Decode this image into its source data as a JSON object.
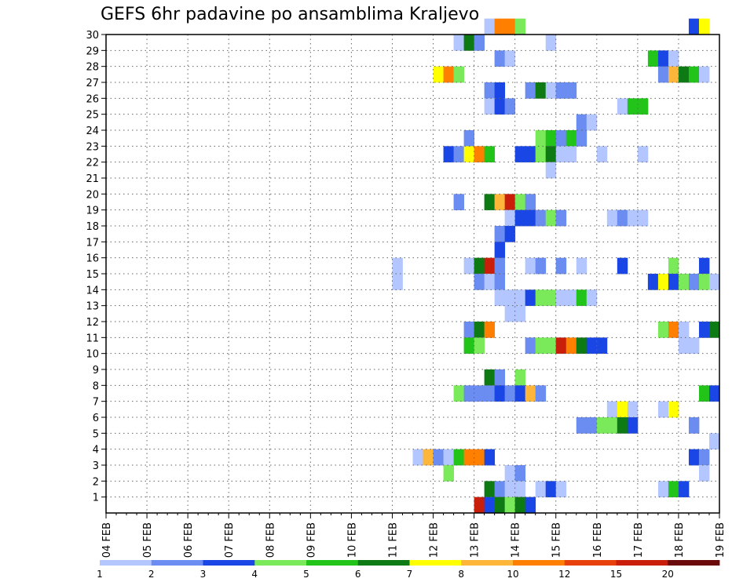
{
  "title": "GEFS 6hr padavine po ansamblima Kraljevo",
  "chart_data": {
    "type": "heatmap",
    "title": "GEFS 6hr padavine po ansamblima Kraljevo",
    "x_tick_labels": [
      "04 FEB",
      "05 FEB",
      "06 FEB",
      "07 FEB",
      "08 FEB",
      "09 FEB",
      "10 FEB",
      "11 FEB",
      "12 FEB",
      "13 FEB",
      "14 FEB",
      "15 FEB",
      "16 FEB",
      "17 FEB",
      "18 FEB",
      "19 FEB"
    ],
    "y_tick_labels": [
      "1",
      "2",
      "3",
      "4",
      "5",
      "6",
      "7",
      "8",
      "9",
      "10",
      "11",
      "12",
      "13",
      "14",
      "15",
      "16",
      "17",
      "18",
      "19",
      "20",
      "21",
      "22",
      "23",
      "24",
      "25",
      "26",
      "27",
      "28",
      "29",
      "30"
    ],
    "x_range": [
      "04 FEB 00Z",
      "19 FEB 00Z"
    ],
    "time_step_hours": 6,
    "y_range": [
      0,
      30
    ],
    "grid": true,
    "legend": {
      "placement": "bottom",
      "labels": [
        "1",
        "2",
        "3",
        "4",
        "5",
        "6",
        "7",
        "8",
        "10",
        "12",
        "15",
        "20"
      ],
      "colors": [
        "#b3c6ff",
        "#6b8cf0",
        "#1a46e6",
        "#7aea5a",
        "#22c41a",
        "#0e7a14",
        "#ffff00",
        "#fdb53a",
        "#ff7f00",
        "#e8400a",
        "#c81e0a",
        "#6b0a0a"
      ]
    },
    "cells": [
      {
        "member": 30,
        "time": "13 FEB 12Z",
        "level": 1
      },
      {
        "member": 30,
        "time": "13 FEB 18Z",
        "level": 10
      },
      {
        "member": 30,
        "time": "14 FEB 00Z",
        "level": 10
      },
      {
        "member": 30,
        "time": "14 FEB 06Z",
        "level": 4
      },
      {
        "member": 30,
        "time": "18 FEB 12Z",
        "level": 3
      },
      {
        "member": 30,
        "time": "18 FEB 18Z",
        "level": 7
      },
      {
        "member": 29,
        "time": "12 FEB 18Z",
        "level": 1
      },
      {
        "member": 29,
        "time": "13 FEB 00Z",
        "level": 6
      },
      {
        "member": 29,
        "time": "13 FEB 06Z",
        "level": 2
      },
      {
        "member": 29,
        "time": "15 FEB 00Z",
        "level": 1
      },
      {
        "member": 28,
        "time": "13 FEB 18Z",
        "level": 2
      },
      {
        "member": 28,
        "time": "14 FEB 00Z",
        "level": 1
      },
      {
        "member": 28,
        "time": "17 FEB 12Z",
        "level": 5
      },
      {
        "member": 28,
        "time": "17 FEB 18Z",
        "level": 3
      },
      {
        "member": 28,
        "time": "18 FEB 00Z",
        "level": 1
      },
      {
        "member": 27,
        "time": "12 FEB 06Z",
        "level": 7
      },
      {
        "member": 27,
        "time": "12 FEB 12Z",
        "level": 10
      },
      {
        "member": 27,
        "time": "12 FEB 18Z",
        "level": 4
      },
      {
        "member": 27,
        "time": "17 FEB 18Z",
        "level": 2
      },
      {
        "member": 27,
        "time": "18 FEB 00Z",
        "level": 8
      },
      {
        "member": 27,
        "time": "18 FEB 06Z",
        "level": 6
      },
      {
        "member": 27,
        "time": "18 FEB 12Z",
        "level": 5
      },
      {
        "member": 27,
        "time": "18 FEB 18Z",
        "level": 1
      },
      {
        "member": 26,
        "time": "13 FEB 12Z",
        "level": 2
      },
      {
        "member": 26,
        "time": "13 FEB 18Z",
        "level": 3
      },
      {
        "member": 26,
        "time": "14 FEB 12Z",
        "level": 2
      },
      {
        "member": 26,
        "time": "14 FEB 18Z",
        "level": 6
      },
      {
        "member": 26,
        "time": "15 FEB 00Z",
        "level": 1
      },
      {
        "member": 26,
        "time": "15 FEB 06Z",
        "level": 2
      },
      {
        "member": 26,
        "time": "15 FEB 12Z",
        "level": 2
      },
      {
        "member": 25,
        "time": "13 FEB 12Z",
        "level": 1
      },
      {
        "member": 25,
        "time": "13 FEB 18Z",
        "level": 3
      },
      {
        "member": 25,
        "time": "14 FEB 00Z",
        "level": 2
      },
      {
        "member": 25,
        "time": "16 FEB 18Z",
        "level": 1
      },
      {
        "member": 25,
        "time": "17 FEB 00Z",
        "level": 5
      },
      {
        "member": 25,
        "time": "17 FEB 06Z",
        "level": 5
      },
      {
        "member": 24,
        "time": "15 FEB 18Z",
        "level": 2
      },
      {
        "member": 24,
        "time": "16 FEB 00Z",
        "level": 1
      },
      {
        "member": 23,
        "time": "13 FEB 00Z",
        "level": 2
      },
      {
        "member": 23,
        "time": "14 FEB 18Z",
        "level": 4
      },
      {
        "member": 23,
        "time": "15 FEB 00Z",
        "level": 5
      },
      {
        "member": 23,
        "time": "15 FEB 06Z",
        "level": 2
      },
      {
        "member": 23,
        "time": "15 FEB 12Z",
        "level": 5
      },
      {
        "member": 23,
        "time": "15 FEB 18Z",
        "level": 2
      },
      {
        "member": 22,
        "time": "12 FEB 12Z",
        "level": 3
      },
      {
        "member": 22,
        "time": "12 FEB 18Z",
        "level": 2
      },
      {
        "member": 22,
        "time": "13 FEB 00Z",
        "level": 7
      },
      {
        "member": 22,
        "time": "13 FEB 06Z",
        "level": 10
      },
      {
        "member": 22,
        "time": "13 FEB 12Z",
        "level": 5
      },
      {
        "member": 22,
        "time": "14 FEB 06Z",
        "level": 3
      },
      {
        "member": 22,
        "time": "14 FEB 12Z",
        "level": 3
      },
      {
        "member": 22,
        "time": "14 FEB 18Z",
        "level": 4
      },
      {
        "member": 22,
        "time": "15 FEB 00Z",
        "level": 6
      },
      {
        "member": 22,
        "time": "15 FEB 06Z",
        "level": 1
      },
      {
        "member": 22,
        "time": "15 FEB 12Z",
        "level": 1
      },
      {
        "member": 22,
        "time": "16 FEB 06Z",
        "level": 1
      },
      {
        "member": 22,
        "time": "17 FEB 06Z",
        "level": 1
      },
      {
        "member": 21,
        "time": "15 FEB 00Z",
        "level": 1
      },
      {
        "member": 19,
        "time": "12 FEB 18Z",
        "level": 2
      },
      {
        "member": 19,
        "time": "13 FEB 12Z",
        "level": 6
      },
      {
        "member": 19,
        "time": "13 FEB 18Z",
        "level": 8
      },
      {
        "member": 19,
        "time": "14 FEB 00Z",
        "level": 15
      },
      {
        "member": 19,
        "time": "14 FEB 06Z",
        "level": 4
      },
      {
        "member": 19,
        "time": "14 FEB 12Z",
        "level": 2
      },
      {
        "member": 18,
        "time": "14 FEB 00Z",
        "level": 1
      },
      {
        "member": 18,
        "time": "14 FEB 06Z",
        "level": 3
      },
      {
        "member": 18,
        "time": "14 FEB 12Z",
        "level": 3
      },
      {
        "member": 18,
        "time": "14 FEB 18Z",
        "level": 2
      },
      {
        "member": 18,
        "time": "15 FEB 00Z",
        "level": 4
      },
      {
        "member": 18,
        "time": "15 FEB 06Z",
        "level": 2
      },
      {
        "member": 18,
        "time": "16 FEB 12Z",
        "level": 1
      },
      {
        "member": 18,
        "time": "16 FEB 18Z",
        "level": 2
      },
      {
        "member": 18,
        "time": "17 FEB 00Z",
        "level": 1
      },
      {
        "member": 18,
        "time": "17 FEB 06Z",
        "level": 1
      },
      {
        "member": 17,
        "time": "13 FEB 18Z",
        "level": 2
      },
      {
        "member": 17,
        "time": "14 FEB 00Z",
        "level": 3
      },
      {
        "member": 16,
        "time": "13 FEB 18Z",
        "level": 3
      },
      {
        "member": 15,
        "time": "11 FEB 06Z",
        "level": 1
      },
      {
        "member": 15,
        "time": "13 FEB 00Z",
        "level": 1
      },
      {
        "member": 15,
        "time": "13 FEB 06Z",
        "level": 6
      },
      {
        "member": 15,
        "time": "13 FEB 12Z",
        "level": 15
      },
      {
        "member": 15,
        "time": "13 FEB 18Z",
        "level": 2
      },
      {
        "member": 15,
        "time": "14 FEB 12Z",
        "level": 1
      },
      {
        "member": 15,
        "time": "14 FEB 18Z",
        "level": 2
      },
      {
        "member": 15,
        "time": "15 FEB 06Z",
        "level": 2
      },
      {
        "member": 15,
        "time": "15 FEB 18Z",
        "level": 1
      },
      {
        "member": 15,
        "time": "16 FEB 18Z",
        "level": 3
      },
      {
        "member": 15,
        "time": "18 FEB 00Z",
        "level": 4
      },
      {
        "member": 15,
        "time": "18 FEB 18Z",
        "level": 3
      },
      {
        "member": 14,
        "time": "11 FEB 06Z",
        "level": 1
      },
      {
        "member": 14,
        "time": "13 FEB 06Z",
        "level": 2
      },
      {
        "member": 14,
        "time": "13 FEB 12Z",
        "level": 1
      },
      {
        "member": 14,
        "time": "13 FEB 18Z",
        "level": 2
      },
      {
        "member": 14,
        "time": "17 FEB 12Z",
        "level": 3
      },
      {
        "member": 14,
        "time": "17 FEB 18Z",
        "level": 7
      },
      {
        "member": 14,
        "time": "18 FEB 00Z",
        "level": 3
      },
      {
        "member": 14,
        "time": "18 FEB 06Z",
        "level": 4
      },
      {
        "member": 14,
        "time": "18 FEB 12Z",
        "level": 2
      },
      {
        "member": 14,
        "time": "18 FEB 18Z",
        "level": 4
      },
      {
        "member": 14,
        "time": "19 FEB 00Z",
        "level": 1
      },
      {
        "member": 13,
        "time": "13 FEB 18Z",
        "level": 1
      },
      {
        "member": 13,
        "time": "14 FEB 00Z",
        "level": 1
      },
      {
        "member": 13,
        "time": "14 FEB 06Z",
        "level": 1
      },
      {
        "member": 13,
        "time": "14 FEB 12Z",
        "level": 3
      },
      {
        "member": 13,
        "time": "14 FEB 18Z",
        "level": 4
      },
      {
        "member": 13,
        "time": "15 FEB 00Z",
        "level": 4
      },
      {
        "member": 13,
        "time": "15 FEB 06Z",
        "level": 1
      },
      {
        "member": 13,
        "time": "15 FEB 12Z",
        "level": 1
      },
      {
        "member": 13,
        "time": "15 FEB 18Z",
        "level": 5
      },
      {
        "member": 13,
        "time": "16 FEB 00Z",
        "level": 1
      },
      {
        "member": 12,
        "time": "14 FEB 00Z",
        "level": 1
      },
      {
        "member": 12,
        "time": "14 FEB 06Z",
        "level": 1
      },
      {
        "member": 11,
        "time": "13 FEB 00Z",
        "level": 2
      },
      {
        "member": 11,
        "time": "13 FEB 06Z",
        "level": 6
      },
      {
        "member": 11,
        "time": "13 FEB 12Z",
        "level": 10
      },
      {
        "member": 11,
        "time": "17 FEB 18Z",
        "level": 4
      },
      {
        "member": 11,
        "time": "18 FEB 00Z",
        "level": 10
      },
      {
        "member": 11,
        "time": "18 FEB 06Z",
        "level": 1
      },
      {
        "member": 11,
        "time": "18 FEB 18Z",
        "level": 3
      },
      {
        "member": 11,
        "time": "19 FEB 00Z",
        "level": 6
      },
      {
        "member": 10,
        "time": "13 FEB 00Z",
        "level": 5
      },
      {
        "member": 10,
        "time": "13 FEB 06Z",
        "level": 4
      },
      {
        "member": 10,
        "time": "14 FEB 12Z",
        "level": 2
      },
      {
        "member": 10,
        "time": "14 FEB 18Z",
        "level": 4
      },
      {
        "member": 10,
        "time": "15 FEB 00Z",
        "level": 4
      },
      {
        "member": 10,
        "time": "15 FEB 06Z",
        "level": 15
      },
      {
        "member": 10,
        "time": "15 FEB 12Z",
        "level": 10
      },
      {
        "member": 10,
        "time": "15 FEB 18Z",
        "level": 6
      },
      {
        "member": 10,
        "time": "16 FEB 00Z",
        "level": 3
      },
      {
        "member": 10,
        "time": "16 FEB 06Z",
        "level": 3
      },
      {
        "member": 10,
        "time": "18 FEB 06Z",
        "level": 1
      },
      {
        "member": 10,
        "time": "18 FEB 12Z",
        "level": 1
      },
      {
        "member": 8,
        "time": "13 FEB 12Z",
        "level": 6
      },
      {
        "member": 8,
        "time": "13 FEB 18Z",
        "level": 2
      },
      {
        "member": 8,
        "time": "14 FEB 06Z",
        "level": 4
      },
      {
        "member": 7,
        "time": "12 FEB 18Z",
        "level": 4
      },
      {
        "member": 7,
        "time": "13 FEB 00Z",
        "level": 2
      },
      {
        "member": 7,
        "time": "13 FEB 06Z",
        "level": 2
      },
      {
        "member": 7,
        "time": "13 FEB 12Z",
        "level": 2
      },
      {
        "member": 7,
        "time": "13 FEB 18Z",
        "level": 3
      },
      {
        "member": 7,
        "time": "14 FEB 00Z",
        "level": 2
      },
      {
        "member": 7,
        "time": "14 FEB 06Z",
        "level": 3
      },
      {
        "member": 7,
        "time": "14 FEB 12Z",
        "level": 8
      },
      {
        "member": 7,
        "time": "14 FEB 18Z",
        "level": 2
      },
      {
        "member": 7,
        "time": "18 FEB 18Z",
        "level": 5
      },
      {
        "member": 7,
        "time": "19 FEB 00Z",
        "level": 3
      },
      {
        "member": 6,
        "time": "16 FEB 12Z",
        "level": 1
      },
      {
        "member": 6,
        "time": "16 FEB 18Z",
        "level": 7
      },
      {
        "member": 6,
        "time": "17 FEB 00Z",
        "level": 1
      },
      {
        "member": 6,
        "time": "17 FEB 18Z",
        "level": 1
      },
      {
        "member": 6,
        "time": "18 FEB 00Z",
        "level": 7
      },
      {
        "member": 5,
        "time": "15 FEB 18Z",
        "level": 2
      },
      {
        "member": 5,
        "time": "16 FEB 00Z",
        "level": 2
      },
      {
        "member": 5,
        "time": "16 FEB 06Z",
        "level": 4
      },
      {
        "member": 5,
        "time": "16 FEB 12Z",
        "level": 4
      },
      {
        "member": 5,
        "time": "16 FEB 18Z",
        "level": 6
      },
      {
        "member": 5,
        "time": "17 FEB 00Z",
        "level": 3
      },
      {
        "member": 5,
        "time": "18 FEB 12Z",
        "level": 2
      },
      {
        "member": 4,
        "time": "19 FEB 00Z",
        "level": 1
      },
      {
        "member": 3,
        "time": "11 FEB 18Z",
        "level": 1
      },
      {
        "member": 3,
        "time": "12 FEB 00Z",
        "level": 8
      },
      {
        "member": 3,
        "time": "12 FEB 06Z",
        "level": 2
      },
      {
        "member": 3,
        "time": "12 FEB 12Z",
        "level": 1
      },
      {
        "member": 3,
        "time": "12 FEB 18Z",
        "level": 5
      },
      {
        "member": 3,
        "time": "13 FEB 00Z",
        "level": 10
      },
      {
        "member": 3,
        "time": "13 FEB 06Z",
        "level": 10
      },
      {
        "member": 3,
        "time": "13 FEB 12Z",
        "level": 3
      },
      {
        "member": 3,
        "time": "18 FEB 12Z",
        "level": 3
      },
      {
        "member": 3,
        "time": "18 FEB 18Z",
        "level": 2
      },
      {
        "member": 2,
        "time": "12 FEB 12Z",
        "level": 4
      },
      {
        "member": 2,
        "time": "14 FEB 00Z",
        "level": 1
      },
      {
        "member": 2,
        "time": "14 FEB 06Z",
        "level": 2
      },
      {
        "member": 2,
        "time": "18 FEB 18Z",
        "level": 1
      },
      {
        "member": 1,
        "time": "13 FEB 12Z",
        "level": 6
      },
      {
        "member": 1,
        "time": "13 FEB 18Z",
        "level": 2
      },
      {
        "member": 1,
        "time": "14 FEB 00Z",
        "level": 1
      },
      {
        "member": 1,
        "time": "14 FEB 06Z",
        "level": 1
      },
      {
        "member": 1,
        "time": "14 FEB 18Z",
        "level": 1
      },
      {
        "member": 1,
        "time": "15 FEB 00Z",
        "level": 3
      },
      {
        "member": 1,
        "time": "15 FEB 06Z",
        "level": 1
      },
      {
        "member": 1,
        "time": "17 FEB 18Z",
        "level": 1
      },
      {
        "member": 1,
        "time": "18 FEB 00Z",
        "level": 5
      },
      {
        "member": 1,
        "time": "18 FEB 06Z",
        "level": 3
      },
      {
        "member": 0,
        "time": "13 FEB 06Z",
        "level": 15
      },
      {
        "member": 0,
        "time": "13 FEB 12Z",
        "level": 3
      },
      {
        "member": 0,
        "time": "13 FEB 18Z",
        "level": 6
      },
      {
        "member": 0,
        "time": "14 FEB 00Z",
        "level": 4
      },
      {
        "member": 0,
        "time": "14 FEB 06Z",
        "level": 6
      },
      {
        "member": 0,
        "time": "14 FEB 12Z",
        "level": 3
      }
    ]
  }
}
